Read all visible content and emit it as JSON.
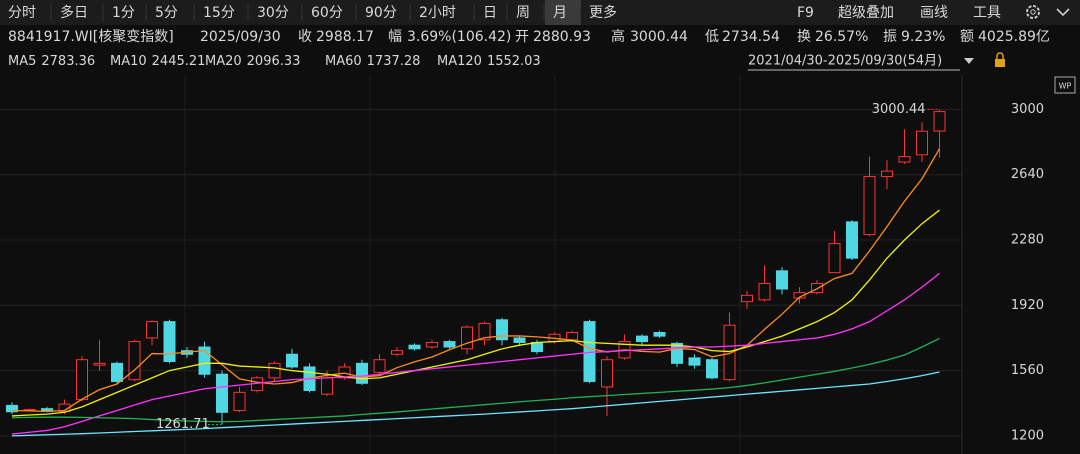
{
  "toolbar": {
    "periods": [
      "分时",
      "多日",
      "1分",
      "5分",
      "15分",
      "30分",
      "60分",
      "90分",
      "2小时",
      "日",
      "周",
      "月",
      "更多"
    ],
    "active": 11,
    "tools": [
      "F9",
      "超级叠加",
      "画线",
      "工具"
    ]
  },
  "quote": {
    "name": "8841917.WI[核聚变指数]",
    "date": "2025/09/30",
    "close_label": "收",
    "change_label": "幅",
    "change": "3.69%(106.42)",
    "open_label": "开",
    "high_label": "高",
    "low_label": "低",
    "turnover_label": "换",
    "turnover": "26.57%",
    "amplitude_label": "振",
    "amplitude": "9.23%",
    "amount_label": "额",
    "amount": "4025.89亿"
  },
  "chart_data": {
    "type": "candlestick",
    "range": "2021/04/30-2025/09/30(54月)",
    "ylim": [
      1100,
      3190
    ],
    "yticks": [
      1200,
      1560,
      1920,
      2280,
      2640,
      3000
    ],
    "grid": true,
    "up_color": "#ff3434",
    "down_color": "#4fd8e4",
    "candles": {
      "open": [
        1368,
        1340,
        1350,
        1335,
        1400,
        1590,
        1600,
        1510,
        1740,
        1830,
        1670,
        1690,
        1540,
        1340,
        1450,
        1520,
        1650,
        1580,
        1430,
        1520,
        1600,
        1550,
        1650,
        1700,
        1690,
        1720,
        1680,
        1730,
        1840,
        1740,
        1715,
        1720,
        1730,
        1830,
        1470,
        1630,
        1750,
        1770,
        1710,
        1630,
        1620,
        1510,
        1940,
        1950,
        2110,
        1960,
        1990,
        2100,
        2380,
        2310,
        2630,
        2710,
        2750,
        2880.93
      ],
      "high": [
        1385,
        1350,
        1360,
        1400,
        1640,
        1730,
        1610,
        1730,
        1840,
        1840,
        1690,
        1720,
        1560,
        1470,
        1530,
        1610,
        1680,
        1600,
        1560,
        1600,
        1620,
        1650,
        1690,
        1710,
        1730,
        1730,
        1810,
        1830,
        1850,
        1750,
        1730,
        1770,
        1780,
        1840,
        1640,
        1760,
        1760,
        1780,
        1720,
        1650,
        1630,
        1880,
        2000,
        2140,
        2130,
        2020,
        2060,
        2330,
        2390,
        2740,
        2720,
        2890,
        2930,
        3000.44
      ],
      "low": [
        1320,
        1335,
        1330,
        1320,
        1390,
        1560,
        1490,
        1500,
        1700,
        1600,
        1630,
        1520,
        1261.71,
        1330,
        1440,
        1500,
        1570,
        1440,
        1420,
        1510,
        1480,
        1530,
        1640,
        1670,
        1680,
        1680,
        1650,
        1700,
        1700,
        1700,
        1650,
        1710,
        1720,
        1490,
        1310,
        1620,
        1700,
        1740,
        1580,
        1570,
        1510,
        1500,
        1900,
        1940,
        1980,
        1930,
        1980,
        2100,
        2170,
        2300,
        2560,
        2700,
        2710,
        2734.54
      ],
      "close": [
        1333,
        1345,
        1335,
        1375,
        1620,
        1600,
        1500,
        1720,
        1830,
        1610,
        1650,
        1540,
        1330,
        1440,
        1520,
        1600,
        1580,
        1450,
        1520,
        1580,
        1490,
        1620,
        1670,
        1680,
        1715,
        1690,
        1800,
        1820,
        1730,
        1715,
        1665,
        1760,
        1770,
        1500,
        1620,
        1720,
        1720,
        1750,
        1600,
        1590,
        1520,
        1810,
        1975,
        2040,
        2010,
        1990,
        2040,
        2260,
        2180,
        2630,
        2660,
        2740,
        2880,
        2988.17
      ]
    },
    "series": [
      {
        "name": "MA5",
        "color": "#ff8a1e",
        "values": [
          1340,
          1338,
          1335,
          1340,
          1402,
          1455,
          1486,
          1563,
          1654,
          1652,
          1662,
          1670,
          1592,
          1514,
          1496,
          1486,
          1494,
          1518,
          1534,
          1546,
          1524,
          1532,
          1576,
          1608,
          1635,
          1675,
          1711,
          1741,
          1751,
          1751,
          1746,
          1738,
          1728,
          1682,
          1663,
          1674,
          1666,
          1662,
          1682,
          1676,
          1636,
          1654,
          1699,
          1787,
          1871,
          1965,
          2011,
          2068,
          2096,
          2220,
          2354,
          2494,
          2618,
          2783.36
        ]
      },
      {
        "name": "MA10",
        "color": "#f2f200",
        "values": [
          1310,
          1315,
          1320,
          1330,
          1360,
          1400,
          1440,
          1480,
          1520,
          1560,
          1580,
          1600,
          1600,
          1585,
          1580,
          1575,
          1560,
          1550,
          1540,
          1525,
          1515,
          1520,
          1540,
          1560,
          1580,
          1600,
          1620,
          1650,
          1680,
          1700,
          1715,
          1720,
          1725,
          1715,
          1710,
          1705,
          1700,
          1700,
          1700,
          1690,
          1670,
          1665,
          1690,
          1720,
          1750,
          1790,
          1830,
          1880,
          1950,
          2060,
          2180,
          2280,
          2370,
          2445.21
        ]
      },
      {
        "name": "MA20",
        "color": "#ff34ff",
        "values": [
          1210,
          1220,
          1230,
          1250,
          1280,
          1310,
          1340,
          1370,
          1400,
          1420,
          1440,
          1460,
          1470,
          1480,
          1490,
          1500,
          1510,
          1515,
          1520,
          1525,
          1530,
          1540,
          1550,
          1560,
          1570,
          1580,
          1590,
          1600,
          1610,
          1620,
          1630,
          1640,
          1650,
          1660,
          1665,
          1670,
          1675,
          1680,
          1685,
          1690,
          1690,
          1695,
          1700,
          1710,
          1720,
          1730,
          1740,
          1760,
          1790,
          1830,
          1890,
          1950,
          2020,
          2096.33
        ]
      },
      {
        "name": "MA60",
        "color": "#22b155",
        "values": [
          1300,
          1302,
          1303,
          1303,
          1302,
          1300,
          1298,
          1295,
          1290,
          1285,
          1282,
          1280,
          1278,
          1280,
          1285,
          1290,
          1295,
          1300,
          1305,
          1310,
          1318,
          1325,
          1332,
          1340,
          1348,
          1356,
          1364,
          1372,
          1380,
          1388,
          1395,
          1402,
          1410,
          1416,
          1422,
          1428,
          1434,
          1440,
          1446,
          1452,
          1458,
          1466,
          1478,
          1492,
          1508,
          1524,
          1540,
          1556,
          1574,
          1594,
          1618,
          1646,
          1690,
          1737.28
        ]
      },
      {
        "name": "MA120",
        "color": "#6ee4ff",
        "values": [
          1200,
          1203,
          1206,
          1209,
          1212,
          1216,
          1220,
          1224,
          1228,
          1232,
          1236,
          1240,
          1245,
          1250,
          1255,
          1260,
          1265,
          1270,
          1275,
          1280,
          1285,
          1290,
          1295,
          1300,
          1305,
          1310,
          1315,
          1320,
          1326,
          1332,
          1338,
          1344,
          1350,
          1358,
          1366,
          1374,
          1382,
          1390,
          1398,
          1406,
          1414,
          1422,
          1430,
          1438,
          1446,
          1454,
          1462,
          1470,
          1478,
          1486,
          1500,
          1515,
          1532,
          1552.03
        ]
      }
    ]
  }
}
